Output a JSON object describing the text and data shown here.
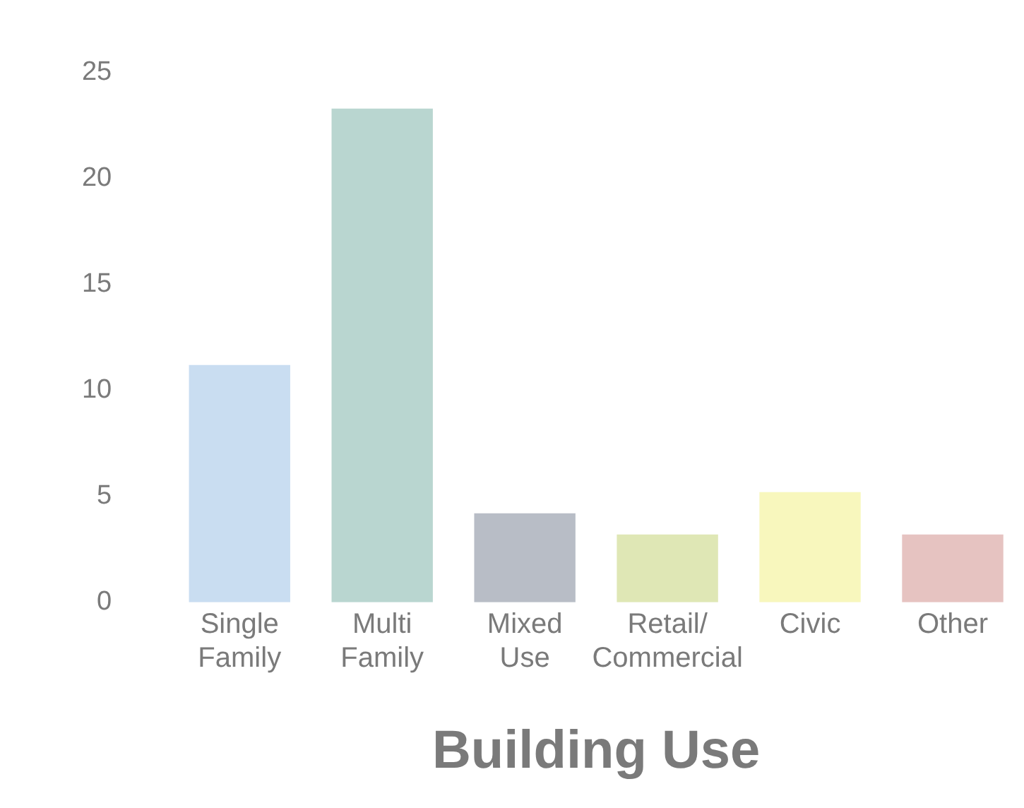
{
  "chart_data": {
    "type": "bar",
    "xlabel": "Building Use",
    "categories": [
      "Single Family",
      "Multi Family",
      "Mixed Use",
      "Retail/Commercial",
      "Civic",
      "Other"
    ],
    "values": [
      11.2,
      23.3,
      4.2,
      3.2,
      5.2,
      3.2
    ],
    "colors": [
      "#c9ddf1",
      "#b9d6d0",
      "#b8bdc6",
      "#dfe7b5",
      "#f8f7bd",
      "#e6c3c1"
    ],
    "ylim": [
      0,
      25
    ],
    "yticks": [
      0,
      5,
      10,
      15,
      20,
      25
    ],
    "grid": false,
    "legend": false
  }
}
